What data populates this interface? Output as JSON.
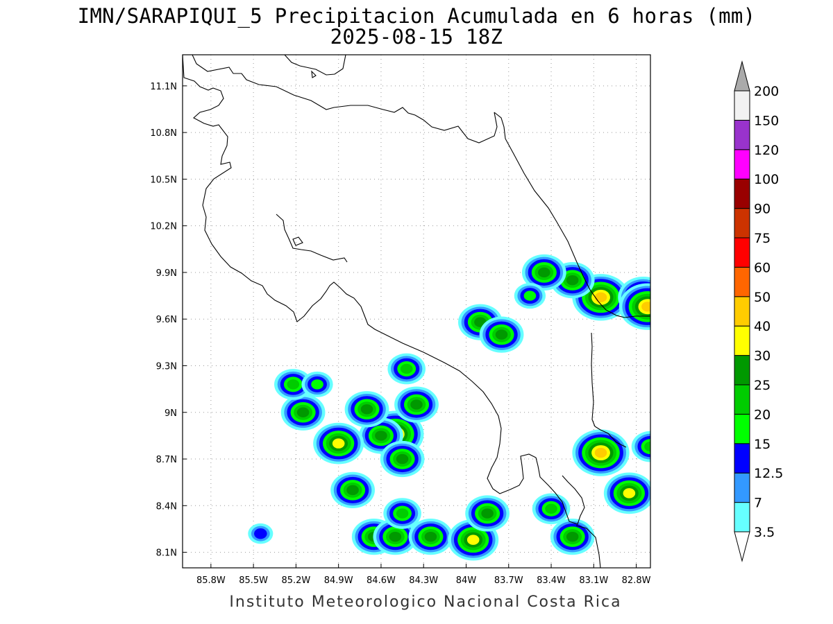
{
  "title": "IMN/SARAPIQUI_5 Precipitacion Acumulada en 6 horas (mm)",
  "subtitle": "2025-08-15 18Z",
  "footer": "Instituto Meteorologico Nacional Costa Rica",
  "axes": {
    "lon_labels": [
      "85.8W",
      "85.5W",
      "85.2W",
      "84.9W",
      "84.6W",
      "84.3W",
      "84W",
      "83.7W",
      "83.4W",
      "83.1W",
      "82.8W"
    ],
    "lat_labels": [
      "11.1N",
      "10.8N",
      "10.5N",
      "10.2N",
      "9.9N",
      "9.6N",
      "9.3N",
      "9N",
      "8.7N",
      "8.4N",
      "8.1N"
    ],
    "lon_range": [
      -86.0,
      -82.7
    ],
    "lat_range": [
      8.0,
      11.3
    ]
  },
  "colorbar": {
    "levels": [
      "3.5",
      "7",
      "12.5",
      "15",
      "20",
      "25",
      "30",
      "40",
      "50",
      "60",
      "75",
      "90",
      "100",
      "120",
      "150",
      "200"
    ],
    "colors": [
      "#66ffff",
      "#3399ff",
      "#0000ff",
      "#00ff00",
      "#00cc00",
      "#009900",
      "#ffff00",
      "#ffcc00",
      "#ff6600",
      "#ff0000",
      "#cc3300",
      "#990000",
      "#ff00ff",
      "#9933cc",
      "#f2f2f2",
      "#aaaaaa"
    ]
  },
  "rain_cells": [
    {
      "lon": -83.05,
      "lat": 9.74,
      "peak": 40
    },
    {
      "lon": -82.75,
      "lat": 9.74,
      "peak": 30
    },
    {
      "lon": -82.72,
      "lat": 9.68,
      "peak": 40
    },
    {
      "lon": -83.25,
      "lat": 9.85,
      "peak": 25
    },
    {
      "lon": -83.45,
      "lat": 9.9,
      "peak": 25
    },
    {
      "lon": -83.9,
      "lat": 9.58,
      "peak": 25
    },
    {
      "lon": -83.75,
      "lat": 9.5,
      "peak": 25
    },
    {
      "lon": -84.5,
      "lat": 8.86,
      "peak": 40
    },
    {
      "lon": -84.6,
      "lat": 8.85,
      "peak": 25
    },
    {
      "lon": -84.45,
      "lat": 8.7,
      "peak": 25
    },
    {
      "lon": -84.35,
      "lat": 9.05,
      "peak": 25
    },
    {
      "lon": -84.7,
      "lat": 9.02,
      "peak": 25
    },
    {
      "lon": -84.42,
      "lat": 9.28,
      "peak": 20
    },
    {
      "lon": -84.9,
      "lat": 8.8,
      "peak": 30
    },
    {
      "lon": -85.15,
      "lat": 9.0,
      "peak": 25
    },
    {
      "lon": -85.22,
      "lat": 9.18,
      "peak": 20
    },
    {
      "lon": -85.05,
      "lat": 9.18,
      "peak": 15
    },
    {
      "lon": -84.65,
      "lat": 8.2,
      "peak": 25
    },
    {
      "lon": -84.5,
      "lat": 8.2,
      "peak": 25
    },
    {
      "lon": -84.25,
      "lat": 8.2,
      "peak": 25
    },
    {
      "lon": -83.95,
      "lat": 8.18,
      "peak": 30
    },
    {
      "lon": -83.85,
      "lat": 8.35,
      "peak": 25
    },
    {
      "lon": -83.4,
      "lat": 8.38,
      "peak": 20
    },
    {
      "lon": -83.25,
      "lat": 8.2,
      "peak": 25
    },
    {
      "lon": -83.05,
      "lat": 8.74,
      "peak": 40
    },
    {
      "lon": -82.85,
      "lat": 8.48,
      "peak": 30
    },
    {
      "lon": -82.7,
      "lat": 8.78,
      "peak": 20
    },
    {
      "lon": -83.55,
      "lat": 9.75,
      "peak": 15
    },
    {
      "lon": -84.8,
      "lat": 8.5,
      "peak": 25
    },
    {
      "lon": -85.45,
      "lat": 8.22,
      "peak": 12.5
    },
    {
      "lon": -84.45,
      "lat": 8.35,
      "peak": 20
    }
  ]
}
